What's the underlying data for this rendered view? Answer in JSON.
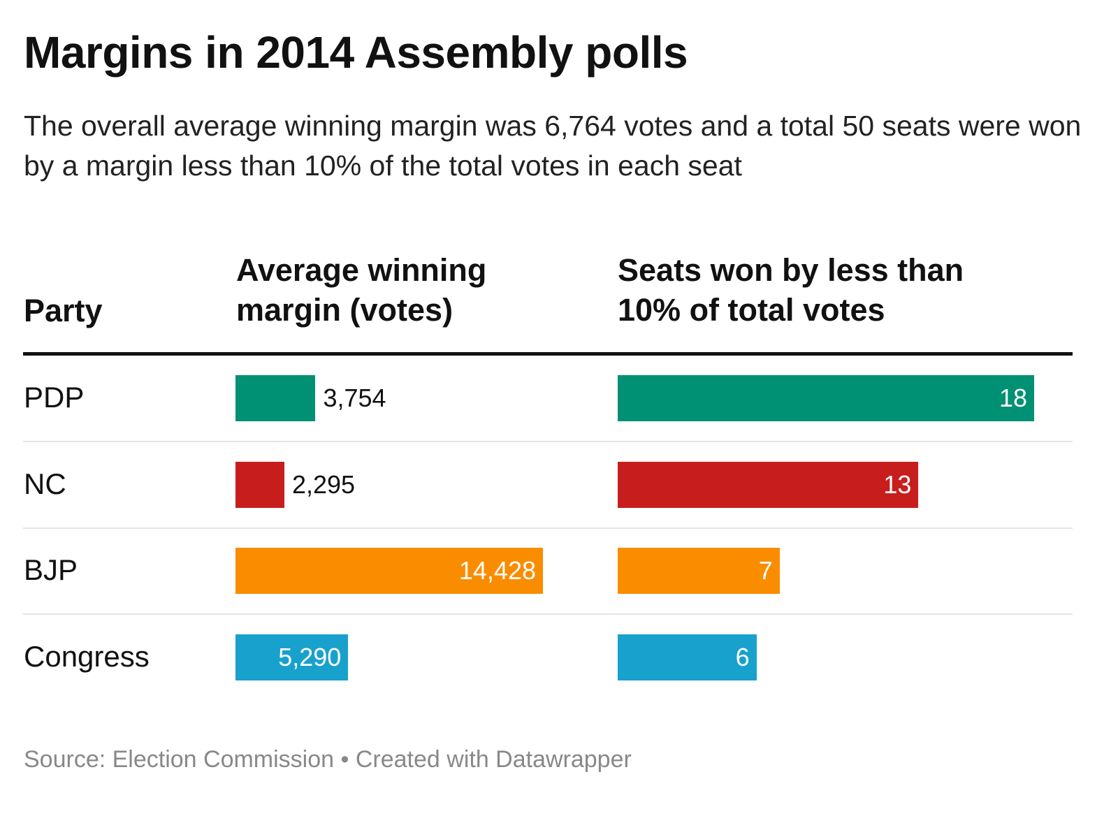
{
  "chart_data": {
    "type": "table",
    "title": "Margins in 2014 Assembly polls",
    "subtitle": "The overall average winning margin was 6,764 votes and a total 50 seats were won by a margin less than 10% of the total votes in each seat",
    "columns": [
      "Party",
      "Average winning margin (votes)",
      "Seats won by less than 10% of total votes"
    ],
    "rows": [
      {
        "party": "PDP",
        "margin": 3754,
        "margin_label": "3,754",
        "seats": 18,
        "seats_label": "18",
        "color": "#009073"
      },
      {
        "party": "NC",
        "margin": 2295,
        "margin_label": "2,295",
        "seats": 13,
        "seats_label": "13",
        "color": "#c71e1d"
      },
      {
        "party": "BJP",
        "margin": 14428,
        "margin_label": "14,428",
        "seats": 7,
        "seats_label": "7",
        "color": "#fa8c00"
      },
      {
        "party": "Congress",
        "margin": 5290,
        "margin_label": "5,290",
        "seats": 6,
        "seats_label": "6",
        "color": "#18a1cd"
      }
    ],
    "footer": "Source: Election Commission • Created with Datawrapper"
  }
}
